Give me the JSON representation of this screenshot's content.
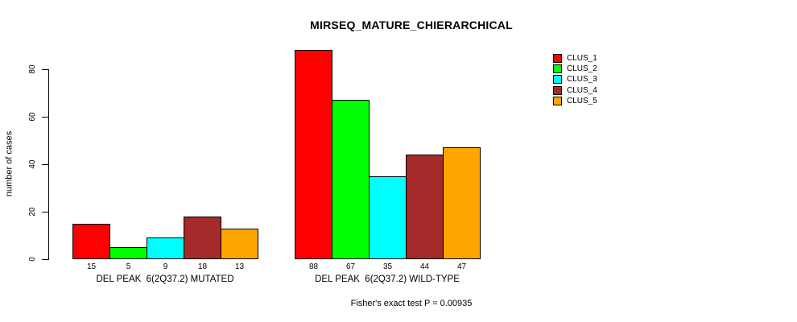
{
  "chart_data": {
    "type": "bar",
    "title": "MIRSEQ_MATURE_CHIERARCHICAL",
    "ylabel": "number of cases",
    "ylim": [
      0,
      80
    ],
    "yticks": [
      0,
      20,
      40,
      60,
      80
    ],
    "grid": false,
    "legend_position": "right",
    "categories": [
      "DEL PEAK  6(2Q37.2) MUTATED",
      "DEL PEAK  6(2Q37.2) WILD-TYPE"
    ],
    "groups": [
      {
        "label": "DEL PEAK  6(2Q37.2) MUTATED",
        "values": [
          15,
          5,
          9,
          18,
          13
        ]
      },
      {
        "label": "DEL PEAK  6(2Q37.2) WILD-TYPE",
        "values": [
          88,
          67,
          35,
          44,
          47
        ]
      }
    ],
    "series": [
      {
        "name": "CLUS_1",
        "color": "#FF0000",
        "values": [
          15,
          88
        ]
      },
      {
        "name": "CLUS_2",
        "color": "#00FF00",
        "values": [
          5,
          67
        ]
      },
      {
        "name": "CLUS_3",
        "color": "#00FFFF",
        "values": [
          9,
          35
        ]
      },
      {
        "name": "CLUS_4",
        "color": "#A52A2A",
        "values": [
          18,
          44
        ]
      },
      {
        "name": "CLUS_5",
        "color": "#FFA500",
        "values": [
          13,
          47
        ]
      }
    ],
    "legend": [
      {
        "label": "CLUS_1",
        "color": "#FF0000"
      },
      {
        "label": "CLUS_2",
        "color": "#00FF00"
      },
      {
        "label": "CLUS_3",
        "color": "#00FFFF"
      },
      {
        "label": "CLUS_4",
        "color": "#A52A2A"
      },
      {
        "label": "CLUS_5",
        "color": "#FFA500"
      }
    ],
    "footnote": "Fisher's exact test P = 0.00935"
  }
}
